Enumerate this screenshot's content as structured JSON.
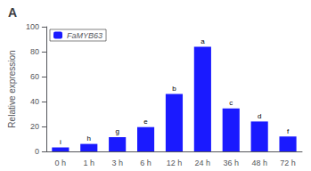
{
  "chart_data": {
    "type": "bar",
    "title": "A",
    "categories": [
      "0 h",
      "1 h",
      "3 h",
      "6 h",
      "12 h",
      "24 h",
      "36 h",
      "48 h",
      "72 h"
    ],
    "series": [
      {
        "name": "FaMYB63",
        "color": "#1a1aff",
        "values": [
          3.2,
          6.0,
          11.5,
          19.5,
          46.0,
          84.0,
          34.5,
          24.0,
          12.0
        ]
      }
    ],
    "annotations": [
      "i",
      "h",
      "g",
      "e",
      "b",
      "a",
      "c",
      "d",
      "f"
    ],
    "ylabel": "Relative expression",
    "ylim": [
      0,
      100
    ],
    "yticks": [
      0,
      20,
      40,
      60,
      80,
      100
    ],
    "grid": false,
    "legend": "upper left"
  }
}
